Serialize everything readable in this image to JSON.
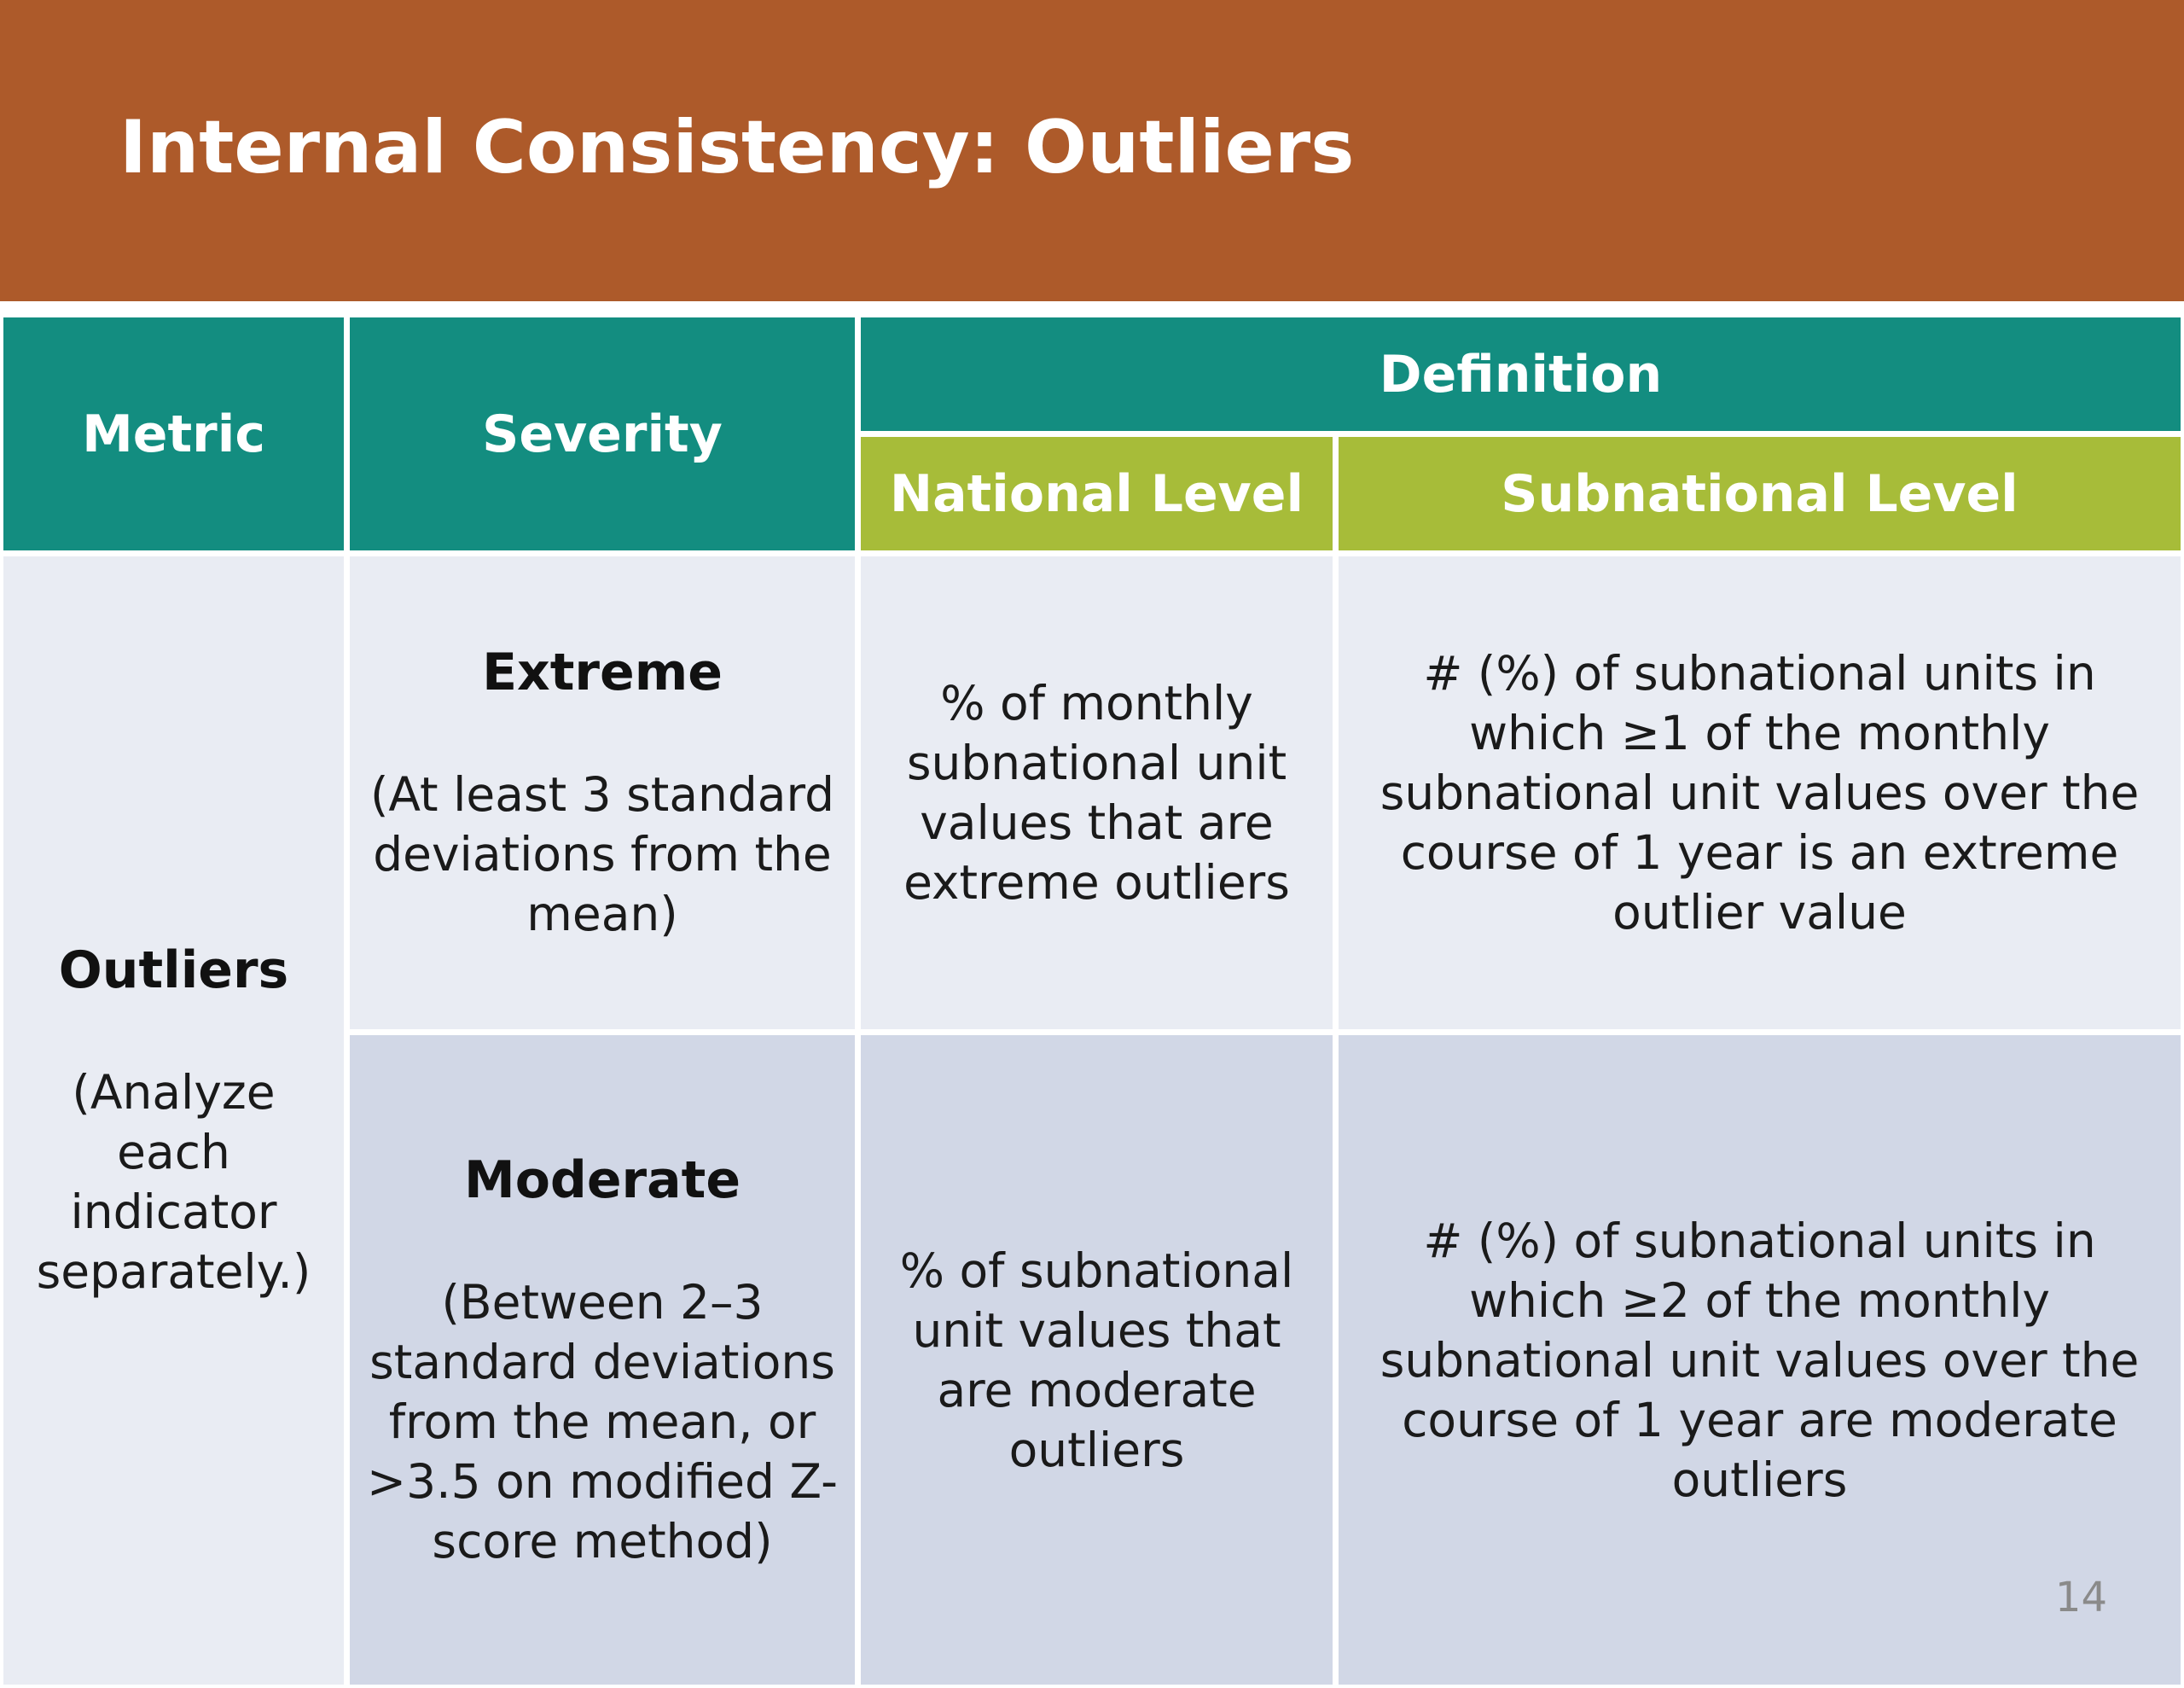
{
  "title": "Internal Consistency: Outliers",
  "table": {
    "headers": {
      "metric": "Metric",
      "severity": "Severity",
      "definition": "Definition",
      "national_level": "National Level",
      "subnational_level": "Subnational Level"
    },
    "metric": {
      "name": "Outliers",
      "note": "(Analyze each indicator separately.)"
    },
    "rows": [
      {
        "severity": "Extreme",
        "severity_note": "(At least 3 standard deviations from the mean)",
        "national": "% of monthly subnational unit values that are extreme outliers",
        "subnational": "# (%) of subnational units in which ≥1 of the monthly subnational unit values over the course of 1 year is an extreme outlier value"
      },
      {
        "severity": "Moderate",
        "severity_note": "(Between 2–3 standard deviations from the mean, or >3.5 on modified Z-score method)",
        "national": "% of subnational unit values that are moderate outliers",
        "subnational": "# (%) of subnational units in which ≥2 of the monthly subnational unit values over the course of 1 year are moderate outliers"
      }
    ]
  },
  "page_number": "14",
  "colors": {
    "title_bar": "#ad5a2a",
    "header_teal": "#138d80",
    "header_green": "#a7bc39",
    "row_light": "#e9ecf3",
    "row_mid": "#d1d7e6"
  }
}
